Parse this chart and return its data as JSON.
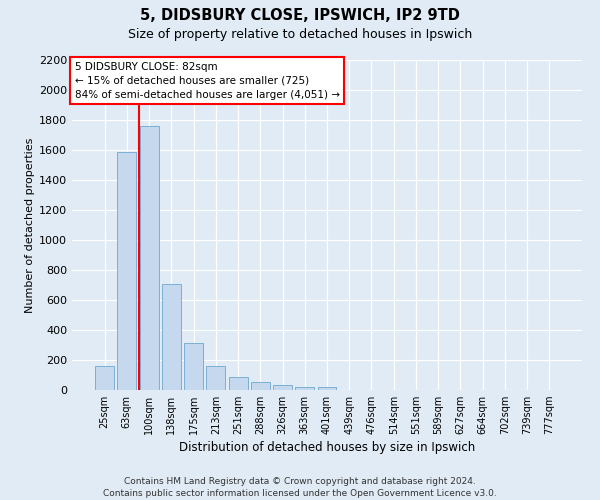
{
  "title1": "5, DIDSBURY CLOSE, IPSWICH, IP2 9TD",
  "title2": "Size of property relative to detached houses in Ipswich",
  "xlabel": "Distribution of detached houses by size in Ipswich",
  "ylabel": "Number of detached properties",
  "bar_values": [
    160,
    1590,
    1760,
    710,
    315,
    160,
    85,
    55,
    35,
    22,
    18,
    0,
    0,
    0,
    0,
    0,
    0,
    0,
    0,
    0,
    0
  ],
  "categories": [
    "25sqm",
    "63sqm",
    "100sqm",
    "138sqm",
    "175sqm",
    "213sqm",
    "251sqm",
    "288sqm",
    "326sqm",
    "363sqm",
    "401sqm",
    "439sqm",
    "476sqm",
    "514sqm",
    "551sqm",
    "589sqm",
    "627sqm",
    "664sqm",
    "702sqm",
    "739sqm",
    "777sqm"
  ],
  "bar_color": "#c5d8ee",
  "bar_edge_color": "#7aafd4",
  "property_line_x": 1.55,
  "property_line_label": "5 DIDSBURY CLOSE: 82sqm",
  "annotation_line1": "← 15% of detached houses are smaller (725)",
  "annotation_line2": "84% of semi-detached houses are larger (4,051) →",
  "ylim_max": 2200,
  "yticks": [
    0,
    200,
    400,
    600,
    800,
    1000,
    1200,
    1400,
    1600,
    1800,
    2000,
    2200
  ],
  "footer1": "Contains HM Land Registry data © Crown copyright and database right 2024.",
  "footer2": "Contains public sector information licensed under the Open Government Licence v3.0.",
  "bg_color": "#e0ebf5",
  "grid_color": "#ffffff"
}
